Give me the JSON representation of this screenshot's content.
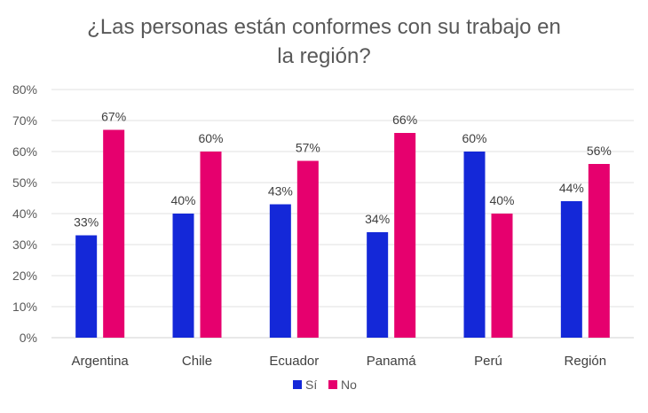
{
  "chart_data": {
    "type": "bar",
    "title": "¿Las personas están conformes con su trabajo en la región?",
    "title_lines": [
      "¿Las personas están conformes con su trabajo en",
      "la región?"
    ],
    "categories": [
      "Argentina",
      "Chile",
      "Ecuador",
      "Panamá",
      "Perú",
      "Región"
    ],
    "series": [
      {
        "name": "Sí",
        "values": [
          33,
          40,
          43,
          34,
          60,
          44
        ],
        "color": "#1428D8",
        "labels": [
          "33%",
          "40%",
          "43%",
          "34%",
          "60%",
          "44%"
        ]
      },
      {
        "name": "No",
        "values": [
          67,
          60,
          57,
          66,
          40,
          56
        ],
        "color": "#E6006E",
        "labels": [
          "67%",
          "60%",
          "57%",
          "66%",
          "40%",
          "56%"
        ]
      }
    ],
    "y_ticks": [
      "0%",
      "10%",
      "20%",
      "30%",
      "40%",
      "50%",
      "60%",
      "70%",
      "80%"
    ],
    "ylim": [
      0,
      80
    ],
    "xlabel": "",
    "ylabel": "",
    "grid": true,
    "legend_position": "bottom"
  }
}
